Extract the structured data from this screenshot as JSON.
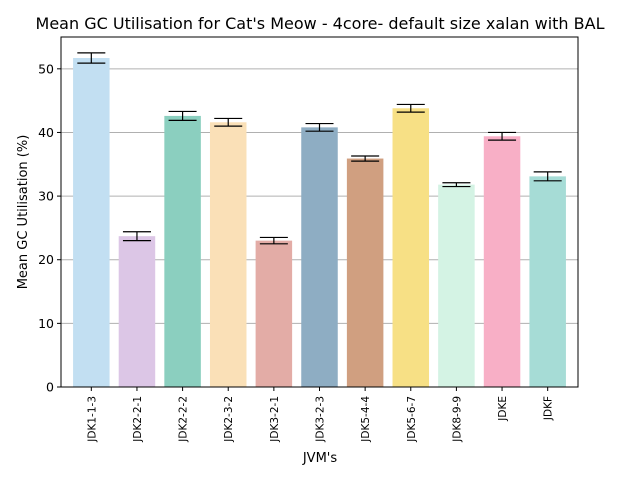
{
  "chart_data": {
    "type": "bar",
    "title": "Mean GC Utilisation for Cat's Meow - 4core- default size xalan with BAL",
    "xlabel": "JVM's",
    "ylabel": "Mean GC Utilisation (%)",
    "ylim": [
      0,
      55
    ],
    "yticks": [
      0,
      10,
      20,
      30,
      40,
      50
    ],
    "grid": "horizontal",
    "legend": "none",
    "categories": [
      "JDK1-1-3",
      "JDK2-2-1",
      "JDK2-2-2",
      "JDK2-3-2",
      "JDK3-2-1",
      "JDK3-2-3",
      "JDK5-4-4",
      "JDK5-6-7",
      "JDK8-9-9",
      "JDKE",
      "JDKF"
    ],
    "values": [
      51.7,
      23.7,
      42.6,
      41.6,
      23.0,
      40.8,
      35.9,
      43.8,
      31.8,
      39.4,
      33.1
    ],
    "errors": [
      0.8,
      0.7,
      0.7,
      0.6,
      0.5,
      0.6,
      0.4,
      0.6,
      0.3,
      0.6,
      0.7
    ],
    "colors": [
      "#c2dff2",
      "#dcc6e6",
      "#8bcfbf",
      "#fae0b7",
      "#e3aca6",
      "#8eadc3",
      "#d09f80",
      "#f7e085",
      "#d4f3e4",
      "#f8afc6",
      "#a6dcd6"
    ]
  }
}
